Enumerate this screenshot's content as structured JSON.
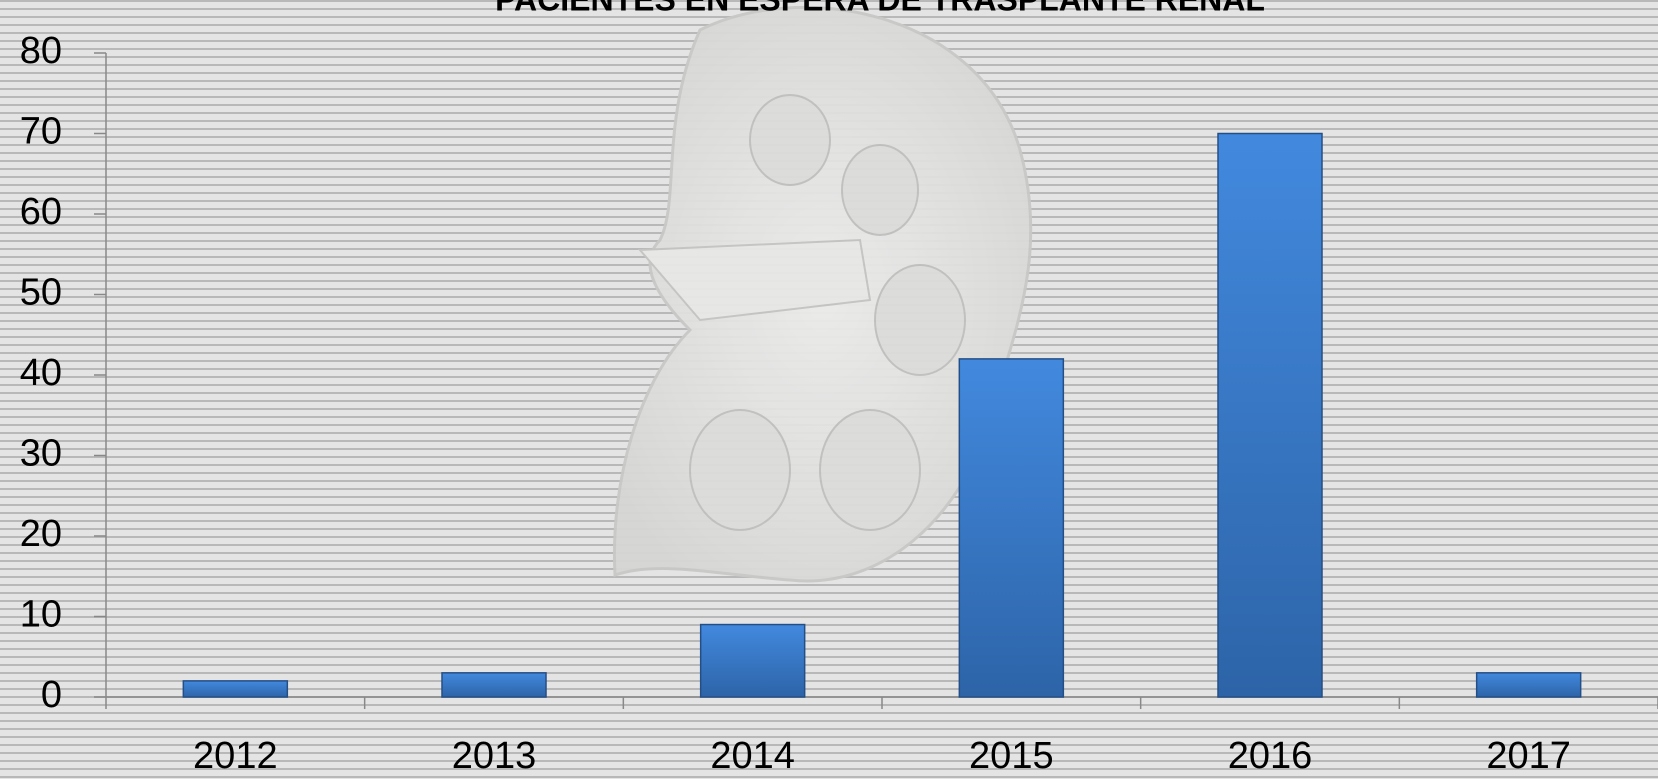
{
  "chart_data": {
    "type": "bar",
    "title": "PACIENTES EN ESPERA DE TRASPLANTE RENAL",
    "categories": [
      "2012",
      "2013",
      "2014",
      "2015",
      "2016",
      "2017"
    ],
    "values": [
      2,
      3,
      9,
      42,
      70,
      3
    ],
    "color": "#3b7dd0",
    "ylim": [
      0,
      80
    ],
    "yticks": [
      0,
      10,
      20,
      30,
      40,
      50,
      60,
      70,
      80
    ]
  }
}
